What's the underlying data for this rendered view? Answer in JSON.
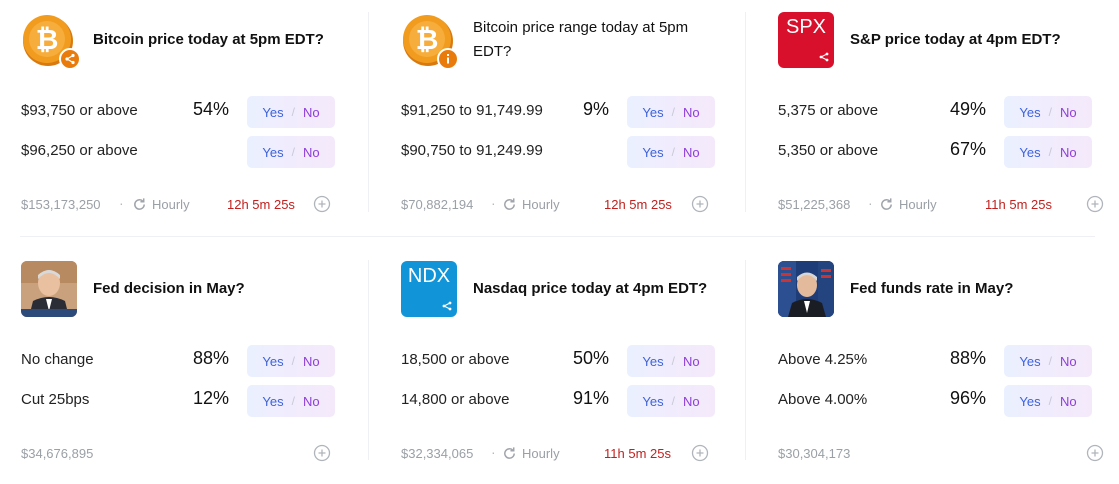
{
  "markets": [
    {
      "title": "Bitcoin price today at 5pm EDT?",
      "thumb_text": "",
      "rows": [
        {
          "label": "$93,750 or above",
          "pct": "54%",
          "yes": "Yes",
          "no": "No"
        },
        {
          "label": "$96,250 or above",
          "pct": "",
          "yes": "Yes",
          "no": "No"
        }
      ],
      "volume": "$153,173,250",
      "freq": "Hourly",
      "timer": "12h 5m 25s"
    },
    {
      "title": "Bitcoin price range today at 5pm EDT?",
      "thumb_text": "",
      "rows": [
        {
          "label": "$91,250 to 91,749.99",
          "pct": "9%",
          "yes": "Yes",
          "no": "No"
        },
        {
          "label": "$90,750 to 91,249.99",
          "pct": "",
          "yes": "Yes",
          "no": "No"
        }
      ],
      "volume": "$70,882,194",
      "freq": "Hourly",
      "timer": "12h 5m 25s"
    },
    {
      "title": "S&P price today at 4pm EDT?",
      "thumb_text": "SPX",
      "rows": [
        {
          "label": "5,375 or above",
          "pct": "49%",
          "yes": "Yes",
          "no": "No"
        },
        {
          "label": "5,350 or above",
          "pct": "67%",
          "yes": "Yes",
          "no": "No"
        }
      ],
      "volume": "$51,225,368",
      "freq": "Hourly",
      "timer": "11h 5m 25s"
    },
    {
      "title": "Fed decision in May?",
      "thumb_text": "",
      "rows": [
        {
          "label": "No change",
          "pct": "88%",
          "yes": "Yes",
          "no": "No"
        },
        {
          "label": "Cut 25bps",
          "pct": "12%",
          "yes": "Yes",
          "no": "No"
        }
      ],
      "volume": "$34,676,895",
      "freq": "",
      "timer": ""
    },
    {
      "title": "Nasdaq price today at 4pm EDT?",
      "thumb_text": "NDX",
      "rows": [
        {
          "label": "18,500 or above",
          "pct": "50%",
          "yes": "Yes",
          "no": "No"
        },
        {
          "label": "14,800 or above",
          "pct": "91%",
          "yes": "Yes",
          "no": "No"
        }
      ],
      "volume": "$32,334,065",
      "freq": "Hourly",
      "timer": "11h 5m 25s"
    },
    {
      "title": "Fed funds rate in May?",
      "thumb_text": "",
      "rows": [
        {
          "label": "Above 4.25%",
          "pct": "88%",
          "yes": "Yes",
          "no": "No"
        },
        {
          "label": "Above 4.00%",
          "pct": "96%",
          "yes": "Yes",
          "no": "No"
        }
      ],
      "volume": "$30,304,173",
      "freq": "",
      "timer": ""
    }
  ],
  "icons": {
    "bitcoin_coin": "bitcoin-coin-icon",
    "share_badge": "share-badge-icon",
    "info_badge": "info-badge-icon",
    "refresh": "refresh-icon",
    "add": "plus-circle-icon"
  },
  "colors": {
    "yes": "#3d63dd",
    "no": "#8e3ed8",
    "timer": "#c0211f",
    "spx_bg": "#d8102c",
    "ndx_bg": "#1295d8",
    "btc": "#f29c1f"
  }
}
